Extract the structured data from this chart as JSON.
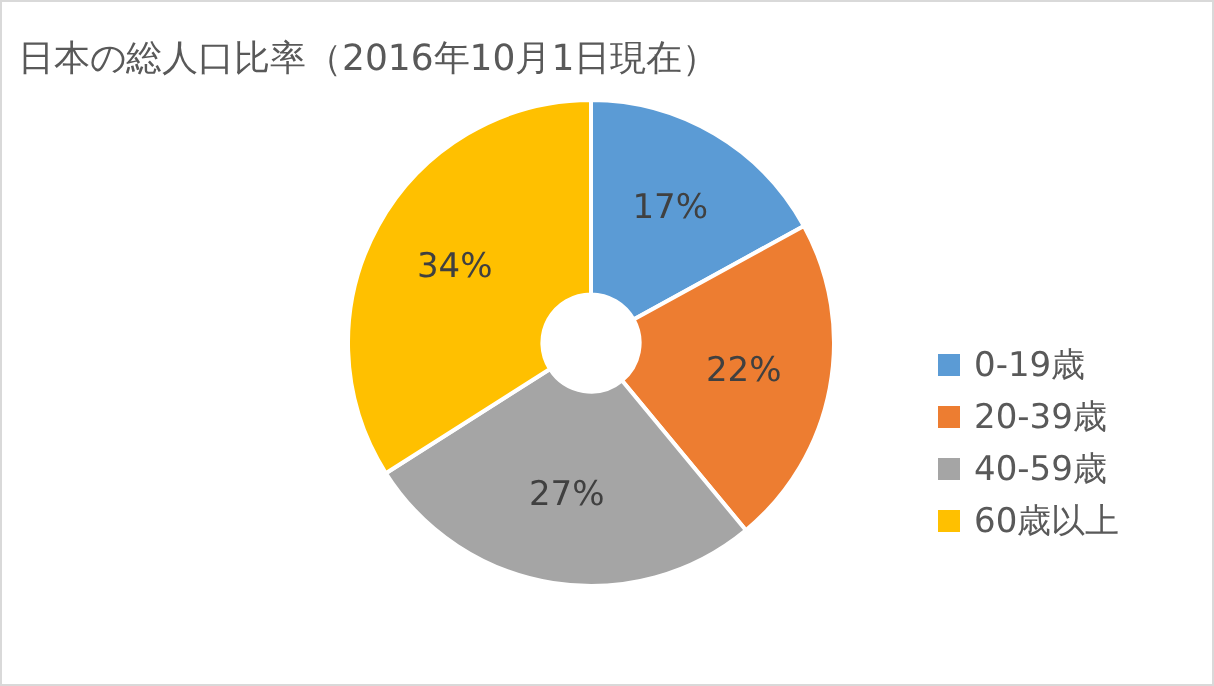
{
  "chart_data": {
    "type": "donut",
    "title": "日本の総人口比率（2016年10月1日現在）",
    "categories": [
      "0-19歳",
      "20-39歳",
      "40-59歳",
      "60歳以上"
    ],
    "values": [
      17,
      22,
      27,
      34
    ],
    "value_labels": [
      "17%",
      "22%",
      "27%",
      "34%"
    ],
    "colors": [
      "#5b9bd5",
      "#ed7d31",
      "#a5a5a5",
      "#ffc000"
    ],
    "legend": "right"
  }
}
